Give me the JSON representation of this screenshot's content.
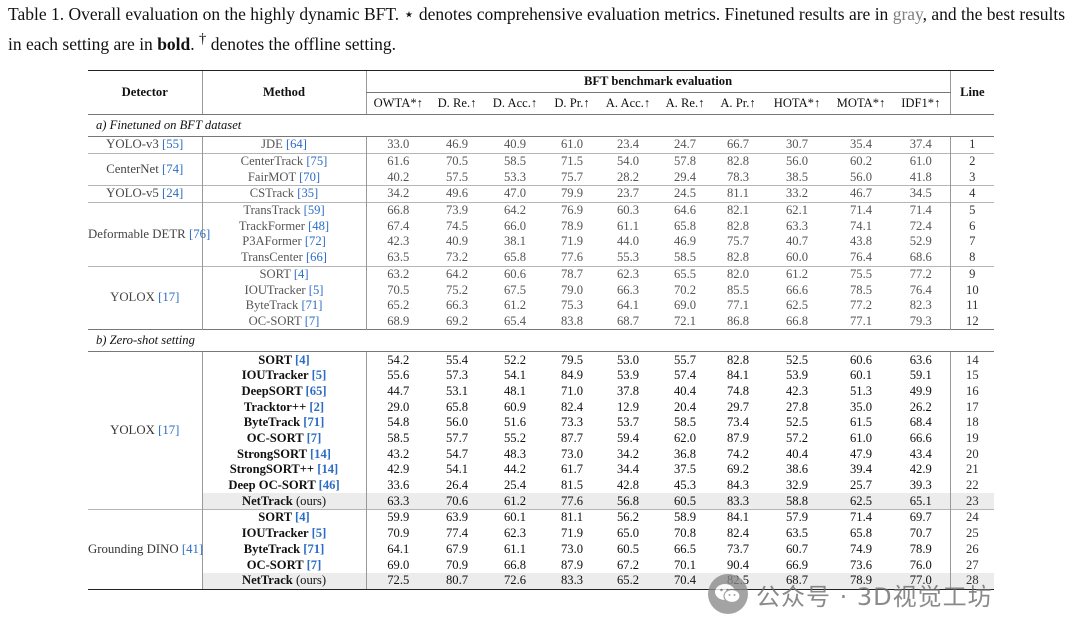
{
  "caption": {
    "part1": "Table 1. Overall evaluation on the highly dynamic BFT. ",
    "star": "⋆",
    "part2": " denotes comprehensive evaluation metrics. Finetuned results are in ",
    "gray_word": "gray",
    "part3": ", and the best results in each setting are in ",
    "bold_word": "bold",
    "part4": ". ",
    "dagger": "†",
    "part5": " denotes the offline setting."
  },
  "header": {
    "detector": "Detector",
    "method": "Method",
    "group": "BFT benchmark evaluation",
    "line": "Line",
    "metrics": [
      "OWTA*↑",
      "D. Re.↑",
      "D. Acc.↑",
      "D. Pr.↑",
      "A. Acc.↑",
      "A. Re.↑",
      "A. Pr.↑",
      "HOTA*↑",
      "MOTA*↑",
      "IDF1*↑"
    ]
  },
  "sections": [
    {
      "caption": "a) Finetuned on BFT dataset",
      "groups": [
        {
          "detector": "YOLO-v3",
          "ref": "[55]",
          "rows": [
            {
              "method": "JDE",
              "ref": "[64]",
              "values": [
                "33.0",
                "46.9",
                "40.9",
                "61.0",
                "23.4",
                "24.7",
                "66.7",
                "30.7",
                "35.4",
                "37.4"
              ],
              "line": "1"
            }
          ]
        },
        {
          "detector": "CenterNet",
          "ref": "[74]",
          "rows": [
            {
              "method": "CenterTrack",
              "ref": "[75]",
              "values": [
                "61.6",
                "70.5",
                "58.5",
                "71.5",
                "54.0",
                "57.8",
                "82.8",
                "56.0",
                "60.2",
                "61.0"
              ],
              "line": "2"
            },
            {
              "method": "FairMOT",
              "ref": "[70]",
              "values": [
                "40.2",
                "57.5",
                "53.3",
                "75.7",
                "28.2",
                "29.4",
                "78.3",
                "38.5",
                "56.0",
                "41.8"
              ],
              "line": "3"
            }
          ]
        },
        {
          "detector": "YOLO-v5",
          "ref": "[24]",
          "rows": [
            {
              "method": "CSTrack",
              "ref": "[35]",
              "values": [
                "34.2",
                "49.6",
                "47.0",
                "79.9",
                "23.7",
                "24.5",
                "81.1",
                "33.2",
                "46.7",
                "34.5"
              ],
              "line": "4"
            }
          ]
        },
        {
          "detector": "Deformable DETR",
          "ref": "[76]",
          "rows": [
            {
              "method": "TransTrack",
              "ref": "[59]",
              "values": [
                "66.8",
                "73.9",
                "64.2",
                "76.9",
                "60.3",
                "64.6",
                "82.1",
                "62.1",
                "71.4",
                "71.4"
              ],
              "line": "5"
            },
            {
              "method": "TrackFormer",
              "ref": "[48]",
              "values": [
                "67.4",
                "74.5",
                "66.0",
                "78.9",
                "61.1",
                "65.8",
                "82.8",
                "63.3",
                "74.1",
                "72.4"
              ],
              "line": "6"
            },
            {
              "method": "P3AFormer",
              "ref": "[72]",
              "values": [
                "42.3",
                "40.9",
                "38.1",
                "71.9",
                "44.0",
                "46.9",
                "75.7",
                "40.7",
                "43.8",
                "52.9"
              ],
              "line": "7"
            },
            {
              "method": "TransCenter",
              "ref": "[66]",
              "values": [
                "63.5",
                "73.2",
                "65.8",
                "77.6",
                "55.3",
                "58.5",
                "82.8",
                "60.0",
                "76.4",
                "68.6"
              ],
              "line": "8"
            }
          ]
        },
        {
          "detector": "YOLOX",
          "ref": "[17]",
          "rows": [
            {
              "method": "SORT",
              "ref": "[4]",
              "values": [
                "63.2",
                "64.2",
                "60.6",
                "78.7",
                "62.3",
                "65.5",
                "82.0",
                "61.2",
                "75.5",
                "77.2"
              ],
              "line": "9"
            },
            {
              "method": "IOUTracker",
              "ref": "[5]",
              "values": [
                "70.5",
                "75.2",
                "67.5",
                "79.0",
                "66.3",
                "70.2",
                "85.5",
                "66.6",
                "78.5",
                "76.4"
              ],
              "bold": [
                0,
                1,
                2,
                8
              ],
              "line": "10"
            },
            {
              "method": "ByteTrack",
              "ref": "[71]",
              "values": [
                "65.2",
                "66.3",
                "61.2",
                "75.3",
                "64.1",
                "69.0",
                "77.1",
                "62.5",
                "77.2",
                "82.3"
              ],
              "bold": [
                9
              ],
              "line": "11"
            },
            {
              "method": "OC-SORT",
              "ref": "[7]",
              "values": [
                "68.9",
                "69.2",
                "65.4",
                "83.8",
                "68.7",
                "72.1",
                "86.8",
                "66.8",
                "77.1",
                "79.3"
              ],
              "bold": [
                3,
                4,
                5,
                6,
                7
              ],
              "line": "12"
            }
          ]
        }
      ]
    },
    {
      "caption": "b) Zero-shot setting",
      "groups": [
        {
          "detector": "YOLOX",
          "ref": "[17]",
          "rows": [
            {
              "method": "SORT",
              "ref": "[4]",
              "values": [
                "54.2",
                "55.4",
                "52.2",
                "79.5",
                "53.0",
                "55.7",
                "82.8",
                "52.5",
                "60.6",
                "63.6"
              ],
              "line": "14"
            },
            {
              "method": "IOUTracker",
              "ref": "[5]",
              "values": [
                "55.6",
                "57.3",
                "54.1",
                "84.9",
                "53.9",
                "57.4",
                "84.1",
                "53.9",
                "60.1",
                "59.1"
              ],
              "line": "15"
            },
            {
              "method": "DeepSORT",
              "ref": "[65]",
              "values": [
                "44.7",
                "53.1",
                "48.1",
                "71.0",
                "37.8",
                "40.4",
                "74.8",
                "42.3",
                "51.3",
                "49.9"
              ],
              "line": "16"
            },
            {
              "method": "Tracktor++",
              "ref": "[2]",
              "values": [
                "29.0",
                "65.8",
                "60.9",
                "82.4",
                "12.9",
                "20.4",
                "29.7",
                "27.8",
                "35.0",
                "26.2"
              ],
              "line": "17"
            },
            {
              "method": "ByteTrack",
              "ref": "[71]",
              "values": [
                "54.8",
                "56.0",
                "51.6",
                "73.3",
                "53.7",
                "58.5",
                "73.4",
                "52.5",
                "61.5",
                "68.4"
              ],
              "bold": [
                9
              ],
              "line": "18"
            },
            {
              "method": "OC-SORT",
              "ref": "[7]",
              "values": [
                "58.5",
                "57.7",
                "55.2",
                "87.7",
                "59.4",
                "62.0",
                "87.9",
                "57.2",
                "61.0",
                "66.6"
              ],
              "bold": [
                3,
                4,
                5,
                6
              ],
              "line": "19"
            },
            {
              "method": "StrongSORT",
              "ref": "[14]",
              "values": [
                "43.2",
                "54.7",
                "48.3",
                "73.0",
                "34.2",
                "36.8",
                "74.2",
                "40.4",
                "47.9",
                "43.4"
              ],
              "line": "20"
            },
            {
              "method": "StrongSORT++",
              "ref": "[14]",
              "values": [
                "42.9",
                "54.1",
                "44.2",
                "61.7",
                "34.4",
                "37.5",
                "69.2",
                "38.6",
                "39.4",
                "42.9"
              ],
              "line": "21"
            },
            {
              "method": "Deep OC-SORT",
              "ref": "[46]",
              "values": [
                "33.6",
                "26.4",
                "25.4",
                "81.5",
                "42.8",
                "45.3",
                "84.3",
                "32.9",
                "25.7",
                "39.3"
              ],
              "line": "22"
            },
            {
              "method": "NetTrack",
              "ref": "(ours)",
              "values": [
                "63.3",
                "70.6",
                "61.2",
                "77.6",
                "56.8",
                "60.5",
                "83.3",
                "58.8",
                "62.5",
                "65.1"
              ],
              "bold": [
                0,
                1,
                2,
                7,
                8
              ],
              "ours": true,
              "line": "23"
            }
          ]
        },
        {
          "detector": "Grounding DINO",
          "ref": "[41]",
          "rows": [
            {
              "method": "SORT",
              "ref": "[4]",
              "values": [
                "59.9",
                "63.9",
                "60.1",
                "81.1",
                "56.2",
                "58.9",
                "84.1",
                "57.9",
                "71.4",
                "69.7"
              ],
              "line": "24"
            },
            {
              "method": "IOUTracker",
              "ref": "[5]",
              "values": [
                "70.9",
                "77.4",
                "62.3",
                "71.9",
                "65.0",
                "70.8",
                "82.4",
                "63.5",
                "65.8",
                "70.7"
              ],
              "bold": [
                5
              ],
              "line": "25"
            },
            {
              "method": "ByteTrack",
              "ref": "[71]",
              "values": [
                "64.1",
                "67.9",
                "61.1",
                "73.0",
                "60.5",
                "66.5",
                "73.7",
                "60.7",
                "74.9",
                "78.9"
              ],
              "bold": [
                9
              ],
              "line": "26"
            },
            {
              "method": "OC-SORT",
              "ref": "[7]",
              "values": [
                "69.0",
                "70.9",
                "66.8",
                "87.9",
                "67.2",
                "70.1",
                "90.4",
                "66.9",
                "73.6",
                "76.0"
              ],
              "bold": [
                3,
                4,
                6
              ],
              "line": "27"
            },
            {
              "method": "NetTrack",
              "ref": "(ours)",
              "values": [
                "72.5",
                "80.7",
                "72.6",
                "83.3",
                "65.2",
                "70.4",
                "82.5",
                "68.7",
                "78.9",
                "77.0"
              ],
              "bold": [
                0,
                1,
                2,
                7,
                8
              ],
              "ours": true,
              "line": "28"
            }
          ]
        }
      ]
    }
  ],
  "watermark": {
    "text": "公众号 · 3D视觉工坊",
    "icon": "wechat-logo-icon"
  }
}
